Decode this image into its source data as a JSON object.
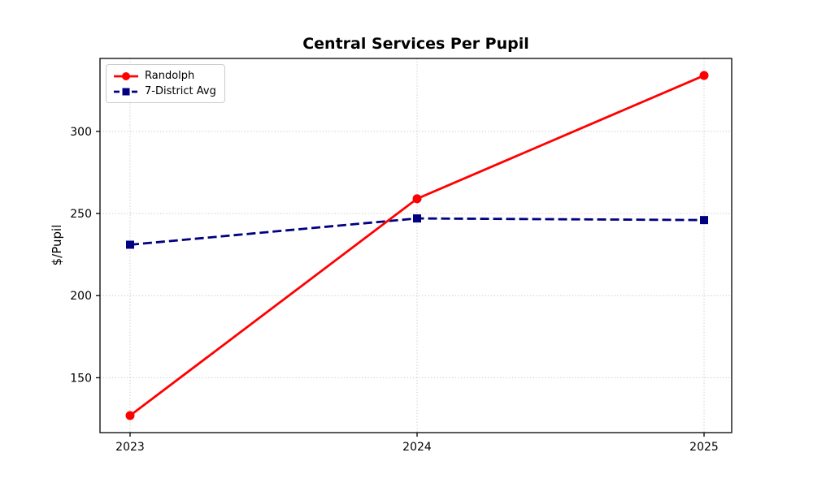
{
  "figure": {
    "title": "Central Services Per Pupil",
    "ylabel": "$/Pupil"
  },
  "chart_data": {
    "type": "line",
    "title": "Central Services Per Pupil",
    "xlabel": "",
    "ylabel": "$/Pupil",
    "x": [
      2023,
      2024,
      2025
    ],
    "xtick_labels": [
      "2023",
      "2024",
      "2025"
    ],
    "yticks": [
      150,
      200,
      250,
      300
    ],
    "ylim": [
      116.6,
      344.4
    ],
    "grid": true,
    "grid_style": "dotted",
    "legend_position": "upper left",
    "series": [
      {
        "name": "Randolph",
        "values": [
          127,
          259,
          334
        ],
        "color": "#ff0000",
        "marker": "circle",
        "line_style": "solid"
      },
      {
        "name": "7-District Avg",
        "values": [
          231,
          247,
          246
        ],
        "color": "#000080",
        "marker": "square",
        "line_style": "dashed"
      }
    ]
  }
}
